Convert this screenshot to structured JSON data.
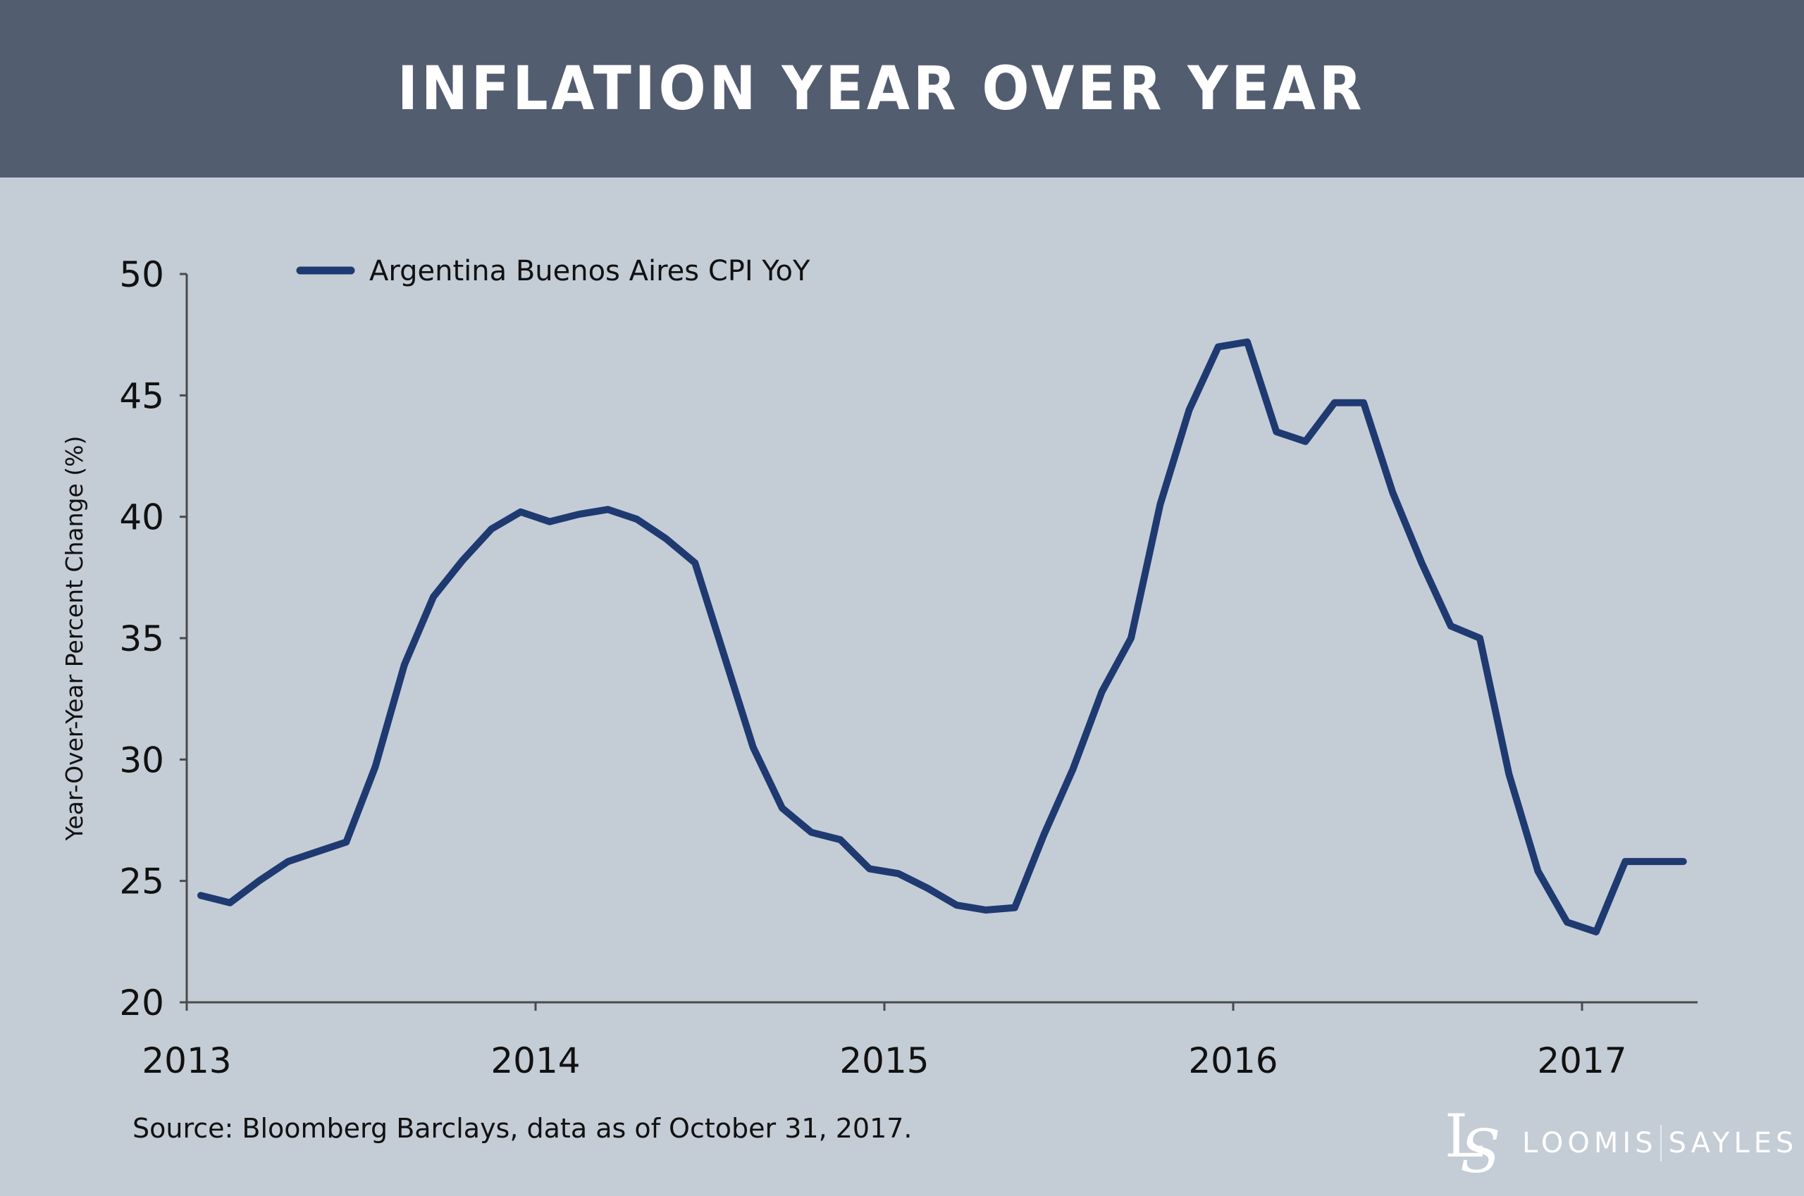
{
  "header": {
    "title": "INFLATION YEAR OVER YEAR"
  },
  "colors": {
    "header_bg": "#535d70",
    "background": "#c4ccd6",
    "series_line": "#1e3a70",
    "axis": "#4a4a4a"
  },
  "footer": {
    "source": "Source: Bloomberg Barclays, data as of October 31, 2017.",
    "logo_left": "LOOMIS",
    "logo_right": "SAYLES",
    "logo_mark": "LS"
  },
  "chart_data": {
    "type": "line",
    "title": "INFLATION YEAR OVER YEAR",
    "xlabel": "",
    "ylabel": "Year-Over-Year Percent Change (%)",
    "ylim": [
      20,
      50
    ],
    "yticks": [
      "20",
      "25",
      "30",
      "35",
      "40",
      "45",
      "50"
    ],
    "xticks": [
      "2013",
      "2014",
      "2015",
      "2016",
      "2017"
    ],
    "grid": false,
    "legend_position": "top-left",
    "x": [
      "2013-01",
      "2013-02",
      "2013-03",
      "2013-04",
      "2013-05",
      "2013-06",
      "2013-07",
      "2013-08",
      "2013-09",
      "2013-10",
      "2013-11",
      "2013-12",
      "2014-01",
      "2014-02",
      "2014-03",
      "2014-04",
      "2014-05",
      "2014-06",
      "2014-07",
      "2014-08",
      "2014-09",
      "2014-10",
      "2014-11",
      "2014-12",
      "2015-01",
      "2015-02",
      "2015-03",
      "2015-04",
      "2015-05",
      "2015-06",
      "2015-07",
      "2015-08",
      "2015-09",
      "2015-10",
      "2015-11",
      "2015-12",
      "2016-01",
      "2016-02",
      "2016-03",
      "2016-04",
      "2016-05",
      "2016-06",
      "2016-07",
      "2016-08",
      "2016-09",
      "2016-10",
      "2016-11",
      "2016-12",
      "2017-01",
      "2017-02",
      "2017-03",
      "2017-04"
    ],
    "series": [
      {
        "name": "Argentina Buenos Aires CPI YoY",
        "color": "#1e3a70",
        "values": [
          24.4,
          24.1,
          25.0,
          25.8,
          26.2,
          26.6,
          29.7,
          33.9,
          36.7,
          38.2,
          39.5,
          40.2,
          39.8,
          40.1,
          40.3,
          39.9,
          39.1,
          38.1,
          34.3,
          30.5,
          28.0,
          27.0,
          26.7,
          25.5,
          25.3,
          24.7,
          24.0,
          23.8,
          23.9,
          26.9,
          29.6,
          32.8,
          35.0,
          40.5,
          44.4,
          47.0,
          47.2,
          43.5,
          43.1,
          44.7,
          44.7,
          41.0,
          38.1,
          35.5,
          35.0,
          29.4,
          25.4,
          23.3,
          22.9,
          25.8,
          25.8,
          25.8
        ]
      }
    ]
  }
}
